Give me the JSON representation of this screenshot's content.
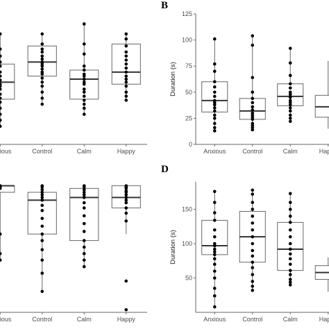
{
  "colors": {
    "box_stroke": "#666666",
    "median": "#333333",
    "point": "#000000",
    "axis": "#666666",
    "text": "#4d4d4d"
  },
  "chart_data": [
    {
      "type": "box",
      "panel_letter": "",
      "categories": [
        "Anxious",
        "Control",
        "Calm",
        "Happy"
      ],
      "ylabel": "",
      "ylim": [
        0,
        130
      ],
      "yticks": [],
      "grid": false,
      "boxes": [
        {
          "q1": 45,
          "median": 62,
          "q3": 80,
          "whisker_low": 18,
          "whisker_high": 110
        },
        {
          "q1": 68,
          "median": 82,
          "q3": 98,
          "whisker_low": 40,
          "whisker_high": 110
        },
        {
          "q1": 45,
          "median": 65,
          "q3": 74,
          "whisker_low": 30,
          "whisker_high": 120
        },
        {
          "q1": 60,
          "median": 72,
          "q3": 100,
          "whisker_low": 44,
          "whisker_high": 110
        }
      ],
      "points": [
        [
          110,
          95,
          88,
          82,
          78,
          72,
          68,
          64,
          60,
          58,
          55,
          50,
          46,
          42,
          36,
          30,
          24,
          18
        ],
        [
          110,
          100,
          95,
          92,
          88,
          85,
          82,
          80,
          78,
          75,
          72,
          70,
          66,
          62,
          58,
          52,
          46,
          40
        ],
        [
          120,
          100,
          90,
          78,
          74,
          70,
          68,
          65,
          62,
          60,
          55,
          52,
          48,
          44,
          40,
          36,
          30
        ],
        [
          110,
          105,
          98,
          92,
          88,
          84,
          80,
          76,
          72,
          68,
          65,
          62,
          58,
          52,
          48,
          44
        ]
      ]
    },
    {
      "type": "box",
      "panel_letter": "B",
      "categories": [
        "Anxious",
        "Control",
        "Calm",
        "Happy"
      ],
      "ylabel": "Duration (s)",
      "ylim": [
        0,
        125
      ],
      "yticks": [
        0,
        25,
        50,
        75,
        100,
        125
      ],
      "grid": false,
      "boxes": [
        {
          "q1": 31,
          "median": 42,
          "q3": 60,
          "whisker_low": 13,
          "whisker_high": 101
        },
        {
          "q1": 24,
          "median": 32,
          "q3": 44,
          "whisker_low": 14,
          "whisker_high": 104
        },
        {
          "q1": 37,
          "median": 46,
          "q3": 58,
          "whisker_low": 22,
          "whisker_high": 92
        },
        {
          "q1": 26,
          "median": 36,
          "q3": 47,
          "whisker_low": 15,
          "whisker_high": 80
        }
      ],
      "points": [
        [
          101,
          77,
          70,
          60,
          55,
          50,
          46,
          42,
          40,
          38,
          35,
          32,
          28,
          25,
          20,
          16,
          13
        ],
        [
          104,
          95,
          64,
          50,
          44,
          40,
          36,
          33,
          30,
          28,
          26,
          24,
          20,
          18,
          16,
          14
        ],
        [
          92,
          78,
          66,
          58,
          54,
          50,
          48,
          46,
          45,
          42,
          40,
          38,
          35,
          32,
          28,
          25,
          22
        ],
        []
      ]
    },
    {
      "type": "box",
      "panel_letter": "",
      "categories": [
        "Anxious",
        "Control",
        "Calm",
        "Happy"
      ],
      "ylabel": "",
      "ylim": [
        0,
        100
      ],
      "yticks": [],
      "grid": false,
      "boxes": [
        {
          "q1": 92,
          "median": 97,
          "q3": 97,
          "whisker_low": 40,
          "whisker_high": 97
        },
        {
          "q1": 60,
          "median": 86,
          "q3": 92,
          "whisker_low": 16,
          "whisker_high": 97
        },
        {
          "q1": 55,
          "median": 88,
          "q3": 95,
          "whisker_low": 35,
          "whisker_high": 97
        },
        {
          "q1": 80,
          "median": 88,
          "q3": 97,
          "whisker_low": 60,
          "whisker_high": 97
        }
      ],
      "points": [
        [
          97,
          96,
          95,
          60,
          45,
          40
        ],
        [
          97,
          96,
          94,
          92,
          90,
          88,
          86,
          82,
          78,
          72,
          66,
          60,
          55,
          48,
          40,
          30,
          16
        ],
        [
          97,
          96,
          94,
          92,
          90,
          88,
          84,
          80,
          74,
          68,
          62,
          55,
          50,
          45,
          40,
          35
        ],
        [
          97,
          96,
          95,
          93,
          92,
          90,
          88,
          86,
          84,
          80,
          76,
          70,
          24,
          2
        ]
      ]
    },
    {
      "type": "box",
      "panel_letter": "D",
      "categories": [
        "Anxious",
        "Control",
        "Calm",
        "Happy"
      ],
      "ylabel": "Duration (s)",
      "ylim": [
        0,
        190
      ],
      "yticks": [
        50,
        100,
        150
      ],
      "grid": false,
      "boxes": [
        {
          "q1": 84,
          "median": 97,
          "q3": 134,
          "whisker_low": 8,
          "whisker_high": 176
        },
        {
          "q1": 73,
          "median": 110,
          "q3": 147,
          "whisker_low": 32,
          "whisker_high": 178
        },
        {
          "q1": 61,
          "median": 92,
          "q3": 131,
          "whisker_low": 40,
          "whisker_high": 173
        },
        {
          "q1": 48,
          "median": 58,
          "q3": 68,
          "whisker_low": 30,
          "whisker_high": 80
        }
      ],
      "points": [
        [
          176,
          160,
          145,
          134,
          120,
          110,
          100,
          97,
          92,
          88,
          84,
          78,
          70,
          60,
          50,
          35,
          24,
          8
        ],
        [
          178,
          172,
          160,
          150,
          140,
          130,
          120,
          110,
          100,
          90,
          82,
          73,
          65,
          55,
          45,
          38,
          32
        ],
        [
          173,
          160,
          150,
          140,
          131,
          120,
          110,
          100,
          92,
          85,
          78,
          70,
          61,
          55,
          48,
          44,
          40
        ],
        []
      ]
    }
  ]
}
